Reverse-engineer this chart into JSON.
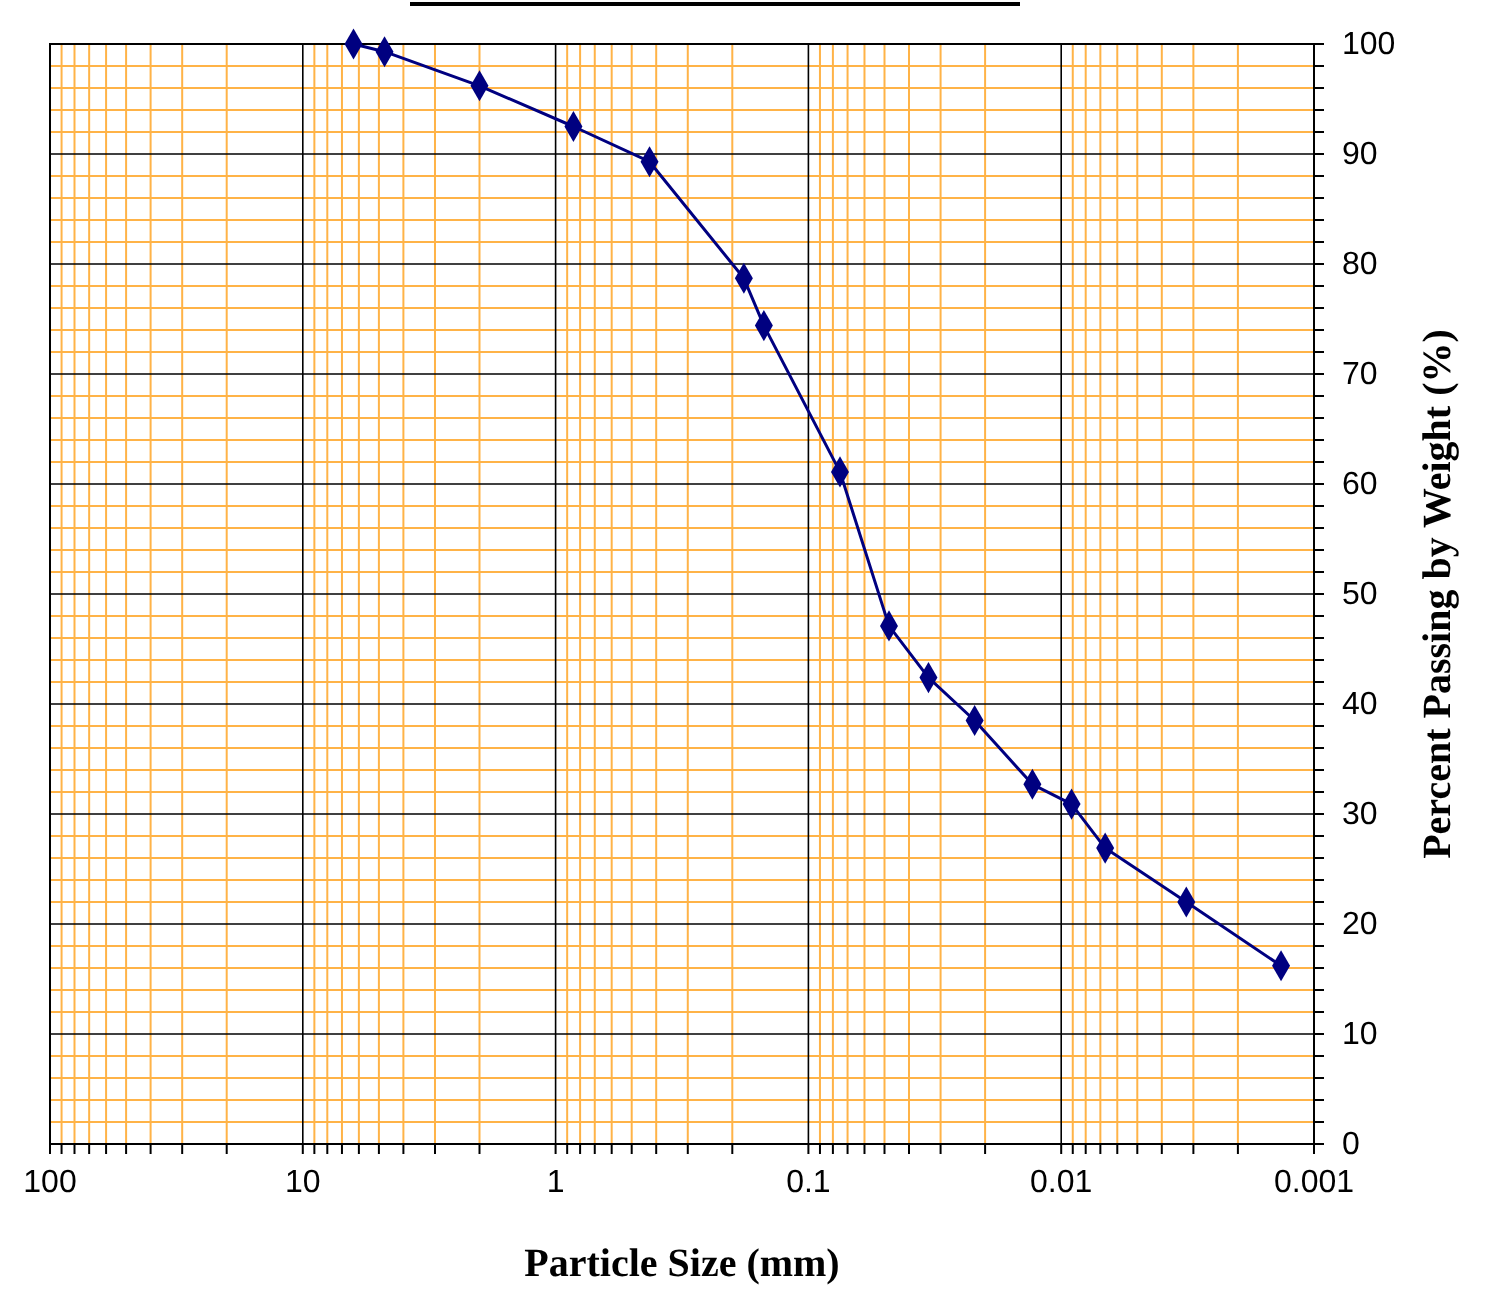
{
  "chart_data": {
    "type": "line",
    "xlabel": "Particle Size (mm)",
    "ylabel": "Percent Passing by Weight (%)",
    "log": "x",
    "xlim": [
      100,
      0.001
    ],
    "xticks": [
      100,
      {
        "value": 90,
        "label": null
      },
      {
        "value": 80,
        "label": null
      },
      {
        "value": 70,
        "label": null
      },
      {
        "value": 60,
        "label": null
      },
      {
        "value": 50,
        "label": null
      },
      {
        "value": 40,
        "label": null
      },
      {
        "value": 30,
        "label": null
      },
      {
        "value": 20,
        "label": null
      },
      10,
      {
        "value": 9,
        "label": null
      },
      {
        "value": 8,
        "label": null
      },
      {
        "value": 7,
        "label": null
      },
      {
        "value": 6,
        "label": null
      },
      {
        "value": 5,
        "label": null
      },
      {
        "value": 4,
        "label": null
      },
      {
        "value": 3,
        "label": null
      },
      {
        "value": 2,
        "label": null
      },
      1,
      {
        "value": 0.9,
        "label": null
      },
      {
        "value": 0.8,
        "label": null
      },
      {
        "value": 0.7,
        "label": null
      },
      {
        "value": 0.6,
        "label": null
      },
      {
        "value": 0.5,
        "label": null
      },
      {
        "value": 0.4,
        "label": null
      },
      {
        "value": 0.3,
        "label": null
      },
      {
        "value": 0.2,
        "label": null
      },
      0.1,
      {
        "value": 0.09,
        "label": null
      },
      {
        "value": 0.08,
        "label": null
      },
      {
        "value": 0.07,
        "label": null
      },
      {
        "value": 0.06,
        "label": null
      },
      {
        "value": 0.05,
        "label": null
      },
      {
        "value": 0.04,
        "label": null
      },
      {
        "value": 0.03,
        "label": null
      },
      {
        "value": 0.02,
        "label": null
      },
      0.01,
      {
        "value": 0.009,
        "label": null
      },
      {
        "value": 0.008,
        "label": null
      },
      {
        "value": 0.007,
        "label": null
      },
      {
        "value": 0.006,
        "label": null
      },
      {
        "value": 0.005,
        "label": null
      },
      {
        "value": 0.004,
        "label": null
      },
      {
        "value": 0.003,
        "label": null
      },
      {
        "value": 0.002,
        "label": null
      },
      0.001
    ],
    "ylim": [
      0,
      100
    ],
    "yticks": [
      0,
      {
        "value": 2,
        "label": null
      },
      {
        "value": 4,
        "label": null
      },
      {
        "value": 6,
        "label": null
      },
      {
        "value": 8,
        "label": null
      },
      10,
      {
        "value": 12,
        "label": null
      },
      {
        "value": 14,
        "label": null
      },
      {
        "value": 16,
        "label": null
      },
      {
        "value": 18,
        "label": null
      },
      20,
      {
        "value": 22,
        "label": null
      },
      {
        "value": 24,
        "label": null
      },
      {
        "value": 26,
        "label": null
      },
      {
        "value": 28,
        "label": null
      },
      30,
      {
        "value": 32,
        "label": null
      },
      {
        "value": 34,
        "label": null
      },
      {
        "value": 36,
        "label": null
      },
      {
        "value": 38,
        "label": null
      },
      40,
      {
        "value": 42,
        "label": null
      },
      {
        "value": 44,
        "label": null
      },
      {
        "value": 46,
        "label": null
      },
      {
        "value": 48,
        "label": null
      },
      50,
      {
        "value": 52,
        "label": null
      },
      {
        "value": 54,
        "label": null
      },
      {
        "value": 56,
        "label": null
      },
      {
        "value": 58,
        "label": null
      },
      60,
      {
        "value": 62,
        "label": null
      },
      {
        "value": 64,
        "label": null
      },
      {
        "value": 66,
        "label": null
      },
      {
        "value": 68,
        "label": null
      },
      70,
      {
        "value": 72,
        "label": null
      },
      {
        "value": 74,
        "label": null
      },
      {
        "value": 76,
        "label": null
      },
      {
        "value": 78,
        "label": null
      },
      80,
      {
        "value": 82,
        "label": null
      },
      {
        "value": 84,
        "label": null
      },
      {
        "value": 86,
        "label": null
      },
      {
        "value": 88,
        "label": null
      },
      90,
      {
        "value": 92,
        "label": null
      },
      {
        "value": 94,
        "label": null
      },
      {
        "value": 96,
        "label": null
      },
      {
        "value": 98,
        "label": null
      },
      100
    ],
    "grid": true,
    "marker": "diamond",
    "line_style": "solid",
    "series": [
      {
        "color": "#000080",
        "x": [
          6.3,
          4.75,
          2.0,
          0.85,
          0.425,
          0.18,
          0.15,
          0.075,
          0.048,
          0.0335,
          0.022,
          0.013,
          0.0091,
          0.0067,
          0.0032,
          0.00135
        ],
        "values": [
          100,
          99.3,
          96.2,
          92.5,
          89.3,
          78.7,
          74.4,
          61.1,
          47.1,
          42.4,
          38.5,
          32.7,
          30.9,
          26.9,
          22,
          16.2
        ]
      }
    ]
  }
}
